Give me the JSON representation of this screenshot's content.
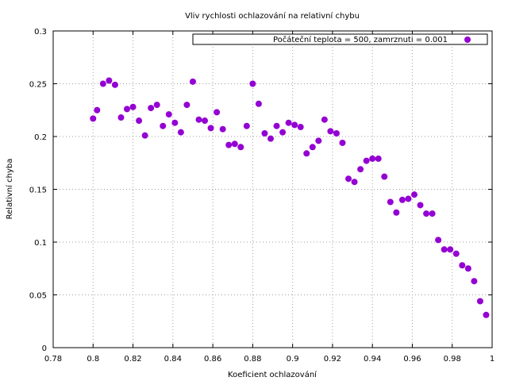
{
  "chart_data": {
    "type": "scatter",
    "title": "Vliv rychlosti ochlazování na relativní chybu",
    "xlabel": "Koeficient ochlazování",
    "ylabel": "Relativní chyba",
    "xlim": [
      0.78,
      1.0
    ],
    "ylim": [
      0,
      0.3
    ],
    "xticks": [
      0.78,
      0.8,
      0.82,
      0.84,
      0.86,
      0.88,
      0.9,
      0.92,
      0.94,
      0.96,
      0.98,
      1.0
    ],
    "xtick_labels": [
      "0.78",
      "0.8",
      "0.82",
      "0.84",
      "0.86",
      "0.88",
      "0.9",
      "0.92",
      "0.94",
      "0.96",
      "0.98",
      "1"
    ],
    "yticks": [
      0,
      0.05,
      0.1,
      0.15,
      0.2,
      0.25,
      0.3
    ],
    "ytick_labels": [
      "0",
      "0.05",
      "0.1",
      "0.15",
      "0.2",
      "0.25",
      "0.3"
    ],
    "grid": true,
    "legend_position": "top-right",
    "series": [
      {
        "name": "Počáteční teplota = 500, zamrznuti = 0.001",
        "color": "#9400d3",
        "x": [
          0.8,
          0.802,
          0.805,
          0.808,
          0.811,
          0.814,
          0.817,
          0.82,
          0.823,
          0.826,
          0.829,
          0.832,
          0.835,
          0.838,
          0.841,
          0.844,
          0.847,
          0.85,
          0.853,
          0.856,
          0.859,
          0.862,
          0.865,
          0.868,
          0.871,
          0.874,
          0.877,
          0.88,
          0.883,
          0.886,
          0.889,
          0.892,
          0.895,
          0.898,
          0.901,
          0.904,
          0.907,
          0.91,
          0.913,
          0.916,
          0.919,
          0.922,
          0.925,
          0.928,
          0.931,
          0.934,
          0.937,
          0.94,
          0.943,
          0.946,
          0.949,
          0.952,
          0.955,
          0.958,
          0.961,
          0.964,
          0.967,
          0.97,
          0.973,
          0.976,
          0.979,
          0.982,
          0.985,
          0.988,
          0.991,
          0.994,
          0.997
        ],
        "y": [
          0.217,
          0.225,
          0.25,
          0.253,
          0.249,
          0.218,
          0.226,
          0.228,
          0.215,
          0.201,
          0.227,
          0.23,
          0.21,
          0.221,
          0.213,
          0.204,
          0.23,
          0.252,
          0.216,
          0.215,
          0.208,
          0.223,
          0.207,
          0.192,
          0.193,
          0.19,
          0.21,
          0.25,
          0.231,
          0.203,
          0.198,
          0.21,
          0.204,
          0.213,
          0.211,
          0.209,
          0.184,
          0.19,
          0.196,
          0.216,
          0.205,
          0.203,
          0.194,
          0.16,
          0.157,
          0.169,
          0.177,
          0.179,
          0.179,
          0.162,
          0.138,
          0.128,
          0.14,
          0.141,
          0.145,
          0.135,
          0.127,
          0.127,
          0.102,
          0.093,
          0.093,
          0.089,
          0.078,
          0.075,
          0.063,
          0.044,
          0.031
        ]
      }
    ]
  }
}
